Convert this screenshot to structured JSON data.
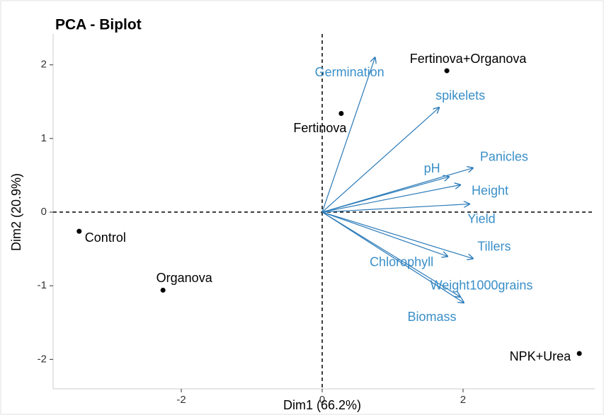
{
  "chart_data": {
    "type": "biplot",
    "title": "PCA - Biplot",
    "xlabel": "Dim1 (66.2%)",
    "ylabel": "Dim2 (20.9%)",
    "xlim": [
      -3.82,
      3.87
    ],
    "ylim": [
      -2.4,
      2.42
    ],
    "xticks": [
      -2,
      0,
      2
    ],
    "yticks": [
      -2,
      -1,
      0,
      1,
      2
    ],
    "individuals": {
      "color": "#000000",
      "names": [
        "Fertinova+Organova",
        "Fertinova",
        "Control",
        "Organova",
        "NPK+Urea"
      ],
      "x": [
        1.77,
        0.27,
        -3.45,
        -2.26,
        3.65
      ],
      "y": [
        1.92,
        1.34,
        -0.26,
        -1.06,
        -1.92
      ]
    },
    "variables": {
      "color": "#2a7ab8",
      "names": [
        "Germination",
        "spikelets",
        "Panicles",
        "pH",
        "Height",
        "Yield",
        "Tillers",
        "Chlorophyll",
        "Weight1000grains",
        "Biomass"
      ],
      "x": [
        0.75,
        1.66,
        2.14,
        1.8,
        1.96,
        2.09,
        2.14,
        1.78,
        1.96,
        2.01
      ],
      "y": [
        2.1,
        1.42,
        0.6,
        0.48,
        0.37,
        0.11,
        -0.63,
        -0.6,
        -1.15,
        -1.23
      ]
    }
  }
}
